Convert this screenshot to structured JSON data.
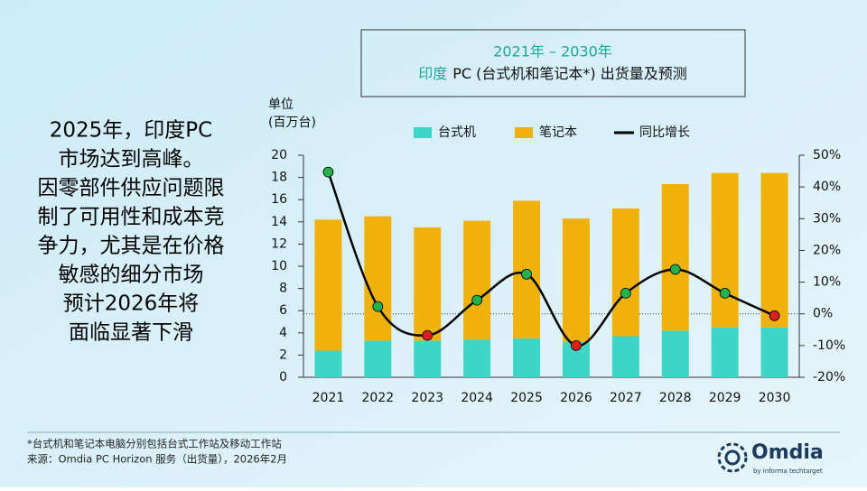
{
  "chart_data": {
    "type": "bar",
    "stacked": true,
    "title": "2021年 – 2030年",
    "subtitle_highlight": "印度",
    "subtitle": "PC (台式机和笔记本*) 出货量及预测",
    "y_label": [
      "单位",
      "(百万台)"
    ],
    "categories": [
      "2021",
      "2022",
      "2023",
      "2024",
      "2025",
      "2026",
      "2027",
      "2028",
      "2029",
      "2030"
    ],
    "series": [
      {
        "name": "台式机",
        "color": "#3dd6c6",
        "values": [
          2.4,
          3.3,
          3.3,
          3.4,
          3.5,
          3.2,
          3.7,
          4.2,
          4.5,
          4.5
        ]
      },
      {
        "name": "笔记本",
        "color": "#f0b20a",
        "values": [
          11.8,
          11.2,
          10.2,
          10.7,
          12.4,
          11.1,
          11.5,
          13.2,
          13.9,
          13.9
        ]
      },
      {
        "name": "同比增长",
        "type": "line",
        "axis": "y2",
        "color": "#000000",
        "positive_color": "#22b14c",
        "negative_color": "#d8201c",
        "values": [
          44.7,
          2.3,
          -6.8,
          4.3,
          12.5,
          -10,
          6.5,
          14,
          6.5,
          -0.6
        ]
      }
    ],
    "ylim": [
      0,
      20
    ],
    "yticks": [
      0,
      2,
      4,
      6,
      8,
      10,
      12,
      14,
      16,
      18,
      20
    ],
    "y2lim": [
      -20,
      50
    ],
    "y2ticks": [
      {
        "value": -20,
        "label": "-20%"
      },
      {
        "value": -10,
        "label": "-10%"
      },
      {
        "value": 0,
        "label": "0%"
      },
      {
        "value": 10,
        "label": "10%"
      },
      {
        "value": 20,
        "label": "20%"
      },
      {
        "value": 30,
        "label": "30%"
      },
      {
        "value": 40,
        "label": "40%"
      },
      {
        "value": 50,
        "label": "50%"
      }
    ],
    "grid": false
  },
  "callout": {
    "lines": [
      "2025年，印度PC",
      "市场达到高峰。",
      "因零部件供应问题限",
      "制了可用性和成本竞",
      "争力，尤其是在价格",
      "敏感的细分市场",
      "预计2026年将",
      "面临显著下滑"
    ]
  },
  "footnotes": [
    "*台式机和笔记本电脑分别包括台式工作站及移动工作站",
    "来源：Omdia PC Horizon 服务（出货量），2026年2月"
  ],
  "logo": {
    "name": "Omdia",
    "tagline": "by informa techtarget"
  }
}
